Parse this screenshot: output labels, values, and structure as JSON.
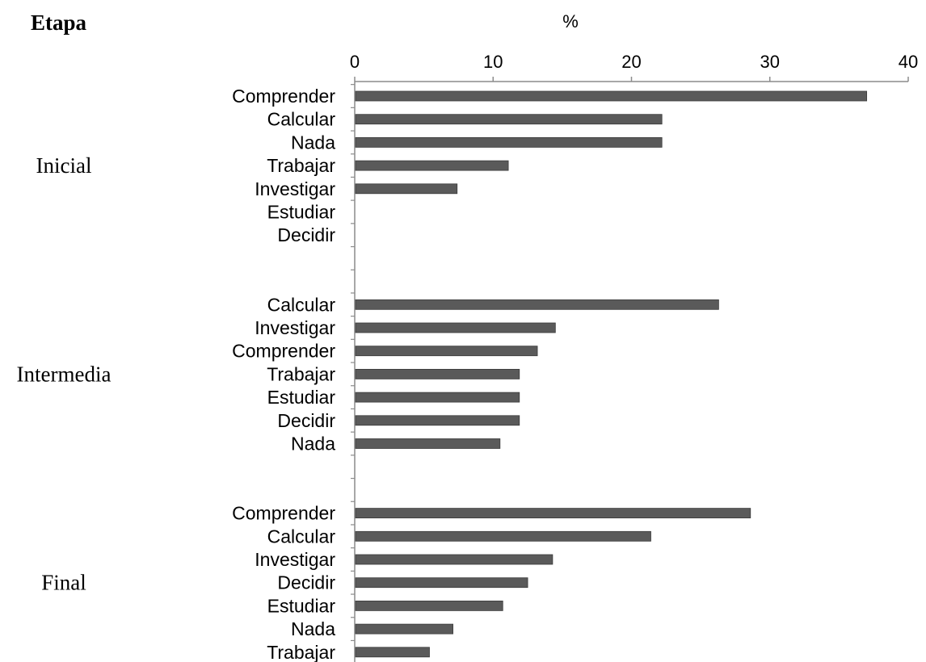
{
  "chart_data": {
    "type": "bar",
    "orientation": "horizontal",
    "group_axis_title": "Etapa",
    "value_axis_title": "%",
    "xlim": [
      0,
      40
    ],
    "x_ticks": [
      "0",
      "10",
      "20",
      "30",
      "40"
    ],
    "bar_color": "#5a5a5a",
    "groups": [
      {
        "name": "Inicial",
        "items": [
          {
            "label": "Comprender",
            "value": 37
          },
          {
            "label": "Calcular",
            "value": 22.2
          },
          {
            "label": "Nada",
            "value": 22.2
          },
          {
            "label": "Trabajar",
            "value": 11.1
          },
          {
            "label": "Investigar",
            "value": 7.4
          },
          {
            "label": "Estudiar",
            "value": 0
          },
          {
            "label": "Decidir",
            "value": 0
          }
        ]
      },
      {
        "name": "Intermedia",
        "items": [
          {
            "label": "Calcular",
            "value": 26.3
          },
          {
            "label": "Investigar",
            "value": 14.5
          },
          {
            "label": "Comprender",
            "value": 13.2
          },
          {
            "label": "Trabajar",
            "value": 11.9
          },
          {
            "label": "Estudiar",
            "value": 11.9
          },
          {
            "label": "Decidir",
            "value": 11.9
          },
          {
            "label": "Nada",
            "value": 10.5
          }
        ]
      },
      {
        "name": "Final",
        "items": [
          {
            "label": "Comprender",
            "value": 28.6
          },
          {
            "label": "Calcular",
            "value": 21.4
          },
          {
            "label": "Investigar",
            "value": 14.3
          },
          {
            "label": "Decidir",
            "value": 12.5
          },
          {
            "label": "Estudiar",
            "value": 10.7
          },
          {
            "label": "Nada",
            "value": 7.1
          },
          {
            "label": "Trabajar",
            "value": 5.4
          }
        ]
      }
    ]
  }
}
